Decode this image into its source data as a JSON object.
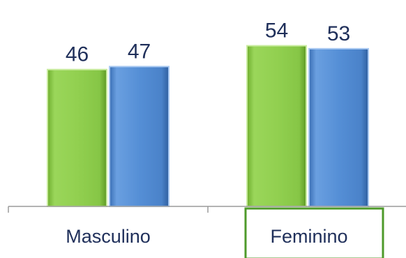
{
  "chart_data": {
    "type": "bar",
    "categories": [
      "Masculino",
      "Feminino"
    ],
    "series": [
      {
        "values": [
          46,
          54
        ],
        "color": "#92d050"
      },
      {
        "values": [
          47,
          53
        ],
        "color": "#4f8ad1"
      }
    ],
    "ylim": [
      0,
      60
    ],
    "grid": false,
    "highlighted_category": "Feminino",
    "highlight_color": "#4e9a2a"
  }
}
